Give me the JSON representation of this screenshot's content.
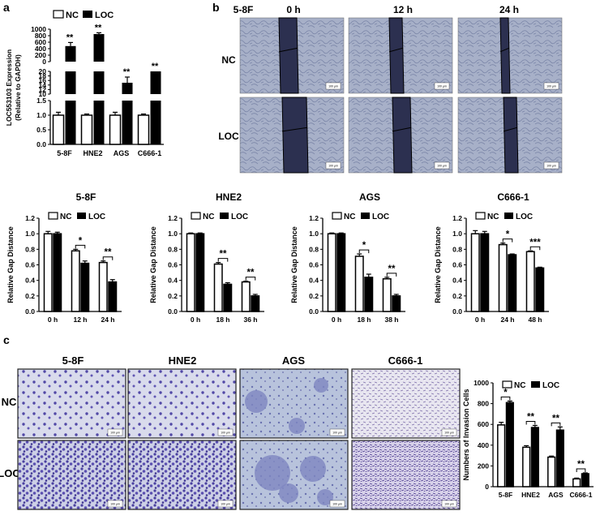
{
  "panel_labels": {
    "a": "a",
    "b": "b",
    "c": "c"
  },
  "legend": {
    "nc": "NC",
    "loc": "LOC"
  },
  "colors": {
    "nc_fill": "#ffffff",
    "loc_fill": "#000000",
    "cell_bg": "#aab1c8",
    "stain": "#4a4aa0",
    "scratch": "#2c3050"
  },
  "micrograph_panel_b": {
    "columns": [
      "0 h",
      "12 h",
      "24 h"
    ],
    "rows": [
      "NC",
      "LOC"
    ],
    "cell_line": "5-8F",
    "scale_bar": "100 μm"
  },
  "micrograph_panel_c": {
    "columns": [
      "5-8F",
      "HNE2",
      "AGS",
      "C666-1"
    ],
    "rows": [
      "NC",
      "LOC"
    ],
    "scale_bars": [
      "100 μm",
      "100 μm",
      "100 μm",
      "100 μm"
    ]
  },
  "chart_data": [
    {
      "type": "bar",
      "panel": "a",
      "categories": [
        "5-8F",
        "HNE2",
        "AGS",
        "C666-1"
      ],
      "series": [
        {
          "name": "NC",
          "values": [
            1.0,
            1.0,
            1.0,
            1.0
          ],
          "errors": [
            0.1,
            0.04,
            0.1,
            0.04
          ]
        },
        {
          "name": "LOC",
          "values": [
            480,
            850,
            15,
            20
          ],
          "errors": [
            110,
            40,
            2.5,
            0
          ]
        }
      ],
      "ylabel": "LOC553103 Expression (Relative to GAPDH)",
      "broken_axis_segments": [
        {
          "range": [
            0,
            1.5
          ],
          "ticks": [
            "0.0",
            "0.5",
            "1.0",
            "1.5"
          ]
        },
        {
          "range": [
            10,
            20
          ],
          "ticks": [
            "10",
            "12",
            "14",
            "16",
            "18",
            "20"
          ]
        },
        {
          "range": [
            0,
            1000
          ],
          "ticks": [
            "0",
            "200",
            "400",
            "600",
            "800",
            "1000"
          ]
        }
      ],
      "significance": [
        "**",
        "**",
        "**",
        "**"
      ]
    },
    {
      "type": "bar",
      "panel": "b",
      "title": "5-8F",
      "categories": [
        "0 h",
        "12 h",
        "24 h"
      ],
      "series": [
        {
          "name": "NC",
          "values": [
            1.0,
            0.78,
            0.63
          ],
          "errors": [
            0.03,
            0.02,
            0.02
          ]
        },
        {
          "name": "LOC",
          "values": [
            1.0,
            0.62,
            0.38
          ],
          "errors": [
            0.02,
            0.03,
            0.03
          ]
        }
      ],
      "ylabel": "Relative Gap Distance",
      "ylim": [
        0,
        1.2
      ],
      "yticks": [
        "0.0",
        "0.2",
        "0.4",
        "0.6",
        "0.8",
        "1.0",
        "1.2"
      ],
      "significance": [
        "",
        "*",
        "**"
      ]
    },
    {
      "type": "bar",
      "panel": "b",
      "title": "HNE2",
      "categories": [
        "0 h",
        "18 h",
        "36 h"
      ],
      "series": [
        {
          "name": "NC",
          "values": [
            1.0,
            0.61,
            0.38
          ],
          "errors": [
            0.01,
            0.02,
            0.01
          ]
        },
        {
          "name": "LOC",
          "values": [
            1.0,
            0.35,
            0.2
          ],
          "errors": [
            0.01,
            0.02,
            0.02
          ]
        }
      ],
      "ylabel": "Relative Gap Distance",
      "ylim": [
        0,
        1.2
      ],
      "yticks": [
        "0.0",
        "0.2",
        "0.4",
        "0.6",
        "0.8",
        "1.0",
        "1.2"
      ],
      "significance": [
        "",
        "**",
        "**"
      ]
    },
    {
      "type": "bar",
      "panel": "b",
      "title": "AGS",
      "categories": [
        "0 h",
        "18 h",
        "38 h"
      ],
      "series": [
        {
          "name": "NC",
          "values": [
            1.0,
            0.71,
            0.42
          ],
          "errors": [
            0.01,
            0.03,
            0.02
          ]
        },
        {
          "name": "LOC",
          "values": [
            1.0,
            0.44,
            0.2
          ],
          "errors": [
            0.01,
            0.04,
            0.02
          ]
        }
      ],
      "ylabel": "Relative Gap Distance",
      "ylim": [
        0,
        1.2
      ],
      "yticks": [
        "0.0",
        "0.2",
        "0.4",
        "0.6",
        "0.8",
        "1.0",
        "1.2"
      ],
      "significance": [
        "",
        "*",
        "**"
      ]
    },
    {
      "type": "bar",
      "panel": "b",
      "title": "C666-1",
      "categories": [
        "0 h",
        "24 h",
        "48 h"
      ],
      "series": [
        {
          "name": "NC",
          "values": [
            1.0,
            0.86,
            0.77
          ],
          "errors": [
            0.04,
            0.02,
            0.01
          ]
        },
        {
          "name": "LOC",
          "values": [
            1.0,
            0.73,
            0.56
          ],
          "errors": [
            0.03,
            0.01,
            0.01
          ]
        }
      ],
      "ylabel": "Relative Gap Distance",
      "ylim": [
        0,
        1.2
      ],
      "yticks": [
        "0.0",
        "0.2",
        "0.4",
        "0.6",
        "0.8",
        "1.0",
        "1.2"
      ],
      "significance": [
        "",
        "*",
        "***"
      ]
    },
    {
      "type": "bar",
      "panel": "c",
      "categories": [
        "5-8F",
        "HNE2",
        "AGS",
        "C666-1"
      ],
      "series": [
        {
          "name": "NC",
          "values": [
            595,
            380,
            285,
            75
          ],
          "errors": [
            25,
            15,
            10,
            8
          ]
        },
        {
          "name": "LOC",
          "values": [
            810,
            570,
            545,
            125
          ],
          "errors": [
            15,
            20,
            30,
            8
          ]
        }
      ],
      "ylabel": "Numbers of Invasion Cells",
      "ylim": [
        0,
        1000
      ],
      "yticks": [
        "0",
        "200",
        "400",
        "600",
        "800",
        "1000"
      ],
      "significance": [
        "*",
        "**",
        "**",
        "**"
      ]
    }
  ]
}
